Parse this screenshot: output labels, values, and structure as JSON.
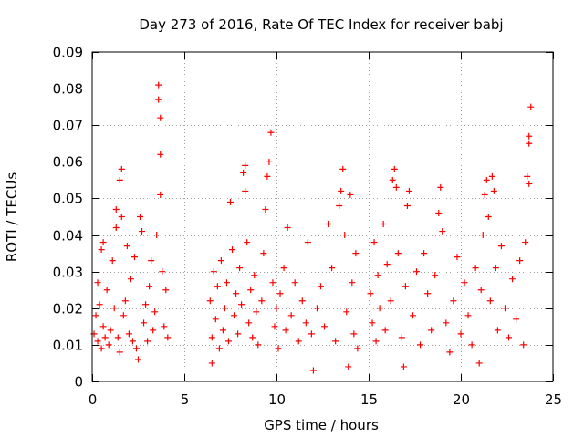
{
  "chart_data": {
    "type": "scatter",
    "title": "Day 273 of 2016, Rate Of TEC Index for receiver babj",
    "xlabel": "GPS time / hours",
    "ylabel": "ROTI / TECUs",
    "xlim": [
      0,
      25
    ],
    "ylim": [
      0,
      0.09
    ],
    "x_ticks": [
      0,
      5,
      10,
      15,
      20,
      25
    ],
    "y_ticks": [
      0,
      0.01,
      0.02,
      0.03,
      0.04,
      0.05,
      0.06,
      0.07,
      0.08,
      0.09
    ],
    "x_tick_labels": [
      "0",
      "5",
      "10",
      "15",
      "20",
      "25"
    ],
    "y_tick_labels": [
      "0",
      "0.01",
      "0.02",
      "0.03",
      "0.04",
      "0.05",
      "0.06",
      "0.07",
      "0.08",
      "0.09"
    ],
    "grid": true,
    "marker": "+",
    "color": "#ff0000",
    "series": [
      {
        "name": "ROTI",
        "points": [
          [
            0.1,
            0.013
          ],
          [
            0.2,
            0.018
          ],
          [
            0.3,
            0.011
          ],
          [
            0.3,
            0.027
          ],
          [
            0.4,
            0.021
          ],
          [
            0.5,
            0.009
          ],
          [
            0.5,
            0.036
          ],
          [
            0.6,
            0.038
          ],
          [
            0.6,
            0.015
          ],
          [
            0.7,
            0.012
          ],
          [
            0.8,
            0.025
          ],
          [
            0.9,
            0.01
          ],
          [
            1.0,
            0.014
          ],
          [
            1.1,
            0.033
          ],
          [
            1.2,
            0.02
          ],
          [
            1.3,
            0.042
          ],
          [
            1.3,
            0.047
          ],
          [
            1.4,
            0.012
          ],
          [
            1.5,
            0.008
          ],
          [
            1.5,
            0.055
          ],
          [
            1.6,
            0.058
          ],
          [
            1.6,
            0.045
          ],
          [
            1.7,
            0.018
          ],
          [
            1.8,
            0.022
          ],
          [
            1.9,
            0.037
          ],
          [
            2.0,
            0.013
          ],
          [
            2.1,
            0.028
          ],
          [
            2.2,
            0.011
          ],
          [
            2.3,
            0.034
          ],
          [
            2.4,
            0.009
          ],
          [
            2.5,
            0.006
          ],
          [
            2.6,
            0.045
          ],
          [
            2.7,
            0.041
          ],
          [
            2.8,
            0.016
          ],
          [
            2.9,
            0.021
          ],
          [
            3.0,
            0.011
          ],
          [
            3.1,
            0.026
          ],
          [
            3.2,
            0.033
          ],
          [
            3.3,
            0.014
          ],
          [
            3.4,
            0.019
          ],
          [
            3.5,
            0.04
          ],
          [
            3.6,
            0.081
          ],
          [
            3.6,
            0.077
          ],
          [
            3.7,
            0.072
          ],
          [
            3.7,
            0.062
          ],
          [
            3.7,
            0.051
          ],
          [
            3.8,
            0.03
          ],
          [
            3.9,
            0.015
          ],
          [
            4.0,
            0.025
          ],
          [
            4.1,
            0.012
          ],
          [
            6.4,
            0.022
          ],
          [
            6.5,
            0.012
          ],
          [
            6.5,
            0.005
          ],
          [
            6.6,
            0.03
          ],
          [
            6.7,
            0.017
          ],
          [
            6.8,
            0.026
          ],
          [
            6.9,
            0.009
          ],
          [
            7.0,
            0.033
          ],
          [
            7.1,
            0.014
          ],
          [
            7.2,
            0.02
          ],
          [
            7.3,
            0.027
          ],
          [
            7.4,
            0.011
          ],
          [
            7.5,
            0.049
          ],
          [
            7.6,
            0.036
          ],
          [
            7.7,
            0.018
          ],
          [
            7.8,
            0.024
          ],
          [
            7.9,
            0.013
          ],
          [
            8.0,
            0.031
          ],
          [
            8.1,
            0.021
          ],
          [
            8.2,
            0.057
          ],
          [
            8.3,
            0.059
          ],
          [
            8.3,
            0.052
          ],
          [
            8.4,
            0.038
          ],
          [
            8.5,
            0.016
          ],
          [
            8.6,
            0.025
          ],
          [
            8.7,
            0.012
          ],
          [
            8.8,
            0.029
          ],
          [
            8.9,
            0.019
          ],
          [
            9.0,
            0.01
          ],
          [
            9.2,
            0.022
          ],
          [
            9.3,
            0.035
          ],
          [
            9.4,
            0.047
          ],
          [
            9.5,
            0.056
          ],
          [
            9.6,
            0.06
          ],
          [
            9.7,
            0.068
          ],
          [
            9.8,
            0.027
          ],
          [
            9.9,
            0.015
          ],
          [
            10.0,
            0.02
          ],
          [
            10.1,
            0.009
          ],
          [
            10.2,
            0.024
          ],
          [
            10.4,
            0.031
          ],
          [
            10.5,
            0.014
          ],
          [
            10.6,
            0.042
          ],
          [
            10.8,
            0.018
          ],
          [
            11.0,
            0.027
          ],
          [
            11.2,
            0.011
          ],
          [
            11.4,
            0.022
          ],
          [
            11.6,
            0.016
          ],
          [
            11.7,
            0.038
          ],
          [
            11.9,
            0.013
          ],
          [
            12.0,
            0.003
          ],
          [
            12.2,
            0.02
          ],
          [
            12.4,
            0.026
          ],
          [
            12.6,
            0.015
          ],
          [
            12.8,
            0.043
          ],
          [
            13.0,
            0.031
          ],
          [
            13.2,
            0.011
          ],
          [
            13.4,
            0.048
          ],
          [
            13.5,
            0.052
          ],
          [
            13.6,
            0.058
          ],
          [
            13.7,
            0.04
          ],
          [
            13.8,
            0.019
          ],
          [
            13.9,
            0.004
          ],
          [
            14.0,
            0.051
          ],
          [
            14.1,
            0.027
          ],
          [
            14.2,
            0.013
          ],
          [
            14.3,
            0.035
          ],
          [
            14.4,
            0.009
          ],
          [
            15.1,
            0.024
          ],
          [
            15.2,
            0.016
          ],
          [
            15.3,
            0.038
          ],
          [
            15.4,
            0.011
          ],
          [
            15.5,
            0.029
          ],
          [
            15.6,
            0.02
          ],
          [
            15.8,
            0.043
          ],
          [
            15.9,
            0.014
          ],
          [
            16.0,
            0.032
          ],
          [
            16.2,
            0.022
          ],
          [
            16.3,
            0.055
          ],
          [
            16.4,
            0.058
          ],
          [
            16.5,
            0.053
          ],
          [
            16.6,
            0.035
          ],
          [
            16.8,
            0.012
          ],
          [
            16.9,
            0.004
          ],
          [
            17.0,
            0.026
          ],
          [
            17.1,
            0.048
          ],
          [
            17.2,
            0.052
          ],
          [
            17.4,
            0.018
          ],
          [
            17.6,
            0.03
          ],
          [
            17.8,
            0.01
          ],
          [
            18.0,
            0.035
          ],
          [
            18.2,
            0.024
          ],
          [
            18.4,
            0.014
          ],
          [
            18.6,
            0.029
          ],
          [
            18.8,
            0.046
          ],
          [
            18.9,
            0.053
          ],
          [
            19.0,
            0.041
          ],
          [
            19.2,
            0.016
          ],
          [
            19.4,
            0.008
          ],
          [
            19.6,
            0.022
          ],
          [
            19.8,
            0.034
          ],
          [
            20.0,
            0.013
          ],
          [
            20.2,
            0.027
          ],
          [
            20.4,
            0.018
          ],
          [
            20.6,
            0.01
          ],
          [
            20.8,
            0.031
          ],
          [
            21.0,
            0.005
          ],
          [
            21.1,
            0.025
          ],
          [
            21.2,
            0.04
          ],
          [
            21.3,
            0.051
          ],
          [
            21.4,
            0.055
          ],
          [
            21.5,
            0.045
          ],
          [
            21.6,
            0.022
          ],
          [
            21.7,
            0.056
          ],
          [
            21.8,
            0.052
          ],
          [
            21.9,
            0.031
          ],
          [
            22.0,
            0.014
          ],
          [
            22.2,
            0.037
          ],
          [
            22.4,
            0.02
          ],
          [
            22.6,
            0.012
          ],
          [
            22.8,
            0.028
          ],
          [
            23.0,
            0.017
          ],
          [
            23.2,
            0.033
          ],
          [
            23.4,
            0.01
          ],
          [
            23.5,
            0.038
          ],
          [
            23.6,
            0.056
          ],
          [
            23.7,
            0.054
          ],
          [
            23.7,
            0.065
          ],
          [
            23.7,
            0.067
          ],
          [
            23.8,
            0.075
          ]
        ]
      }
    ]
  }
}
